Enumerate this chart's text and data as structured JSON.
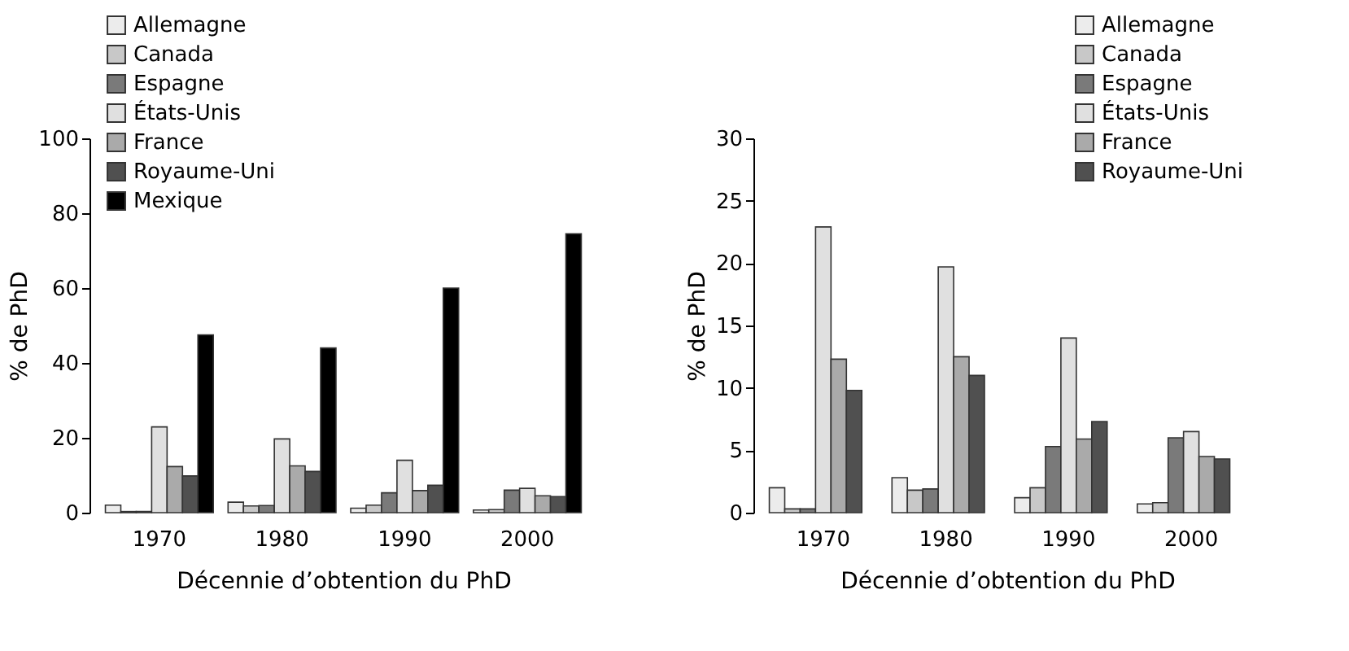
{
  "chart_data": [
    {
      "type": "bar",
      "xlabel": "Décennie d’obtention du PhD",
      "ylabel": "% de PhD",
      "categories": [
        "1970",
        "1980",
        "1990",
        "2000"
      ],
      "ylim": [
        0,
        100
      ],
      "yticks": [
        0,
        20,
        40,
        60,
        80,
        100
      ],
      "grid": false,
      "legend": "top left",
      "series": [
        {
          "name": "Allemagne",
          "color": "#ececec",
          "values": [
            2.0,
            2.8,
            1.2,
            0.7
          ]
        },
        {
          "name": "Canada",
          "color": "#c8c8c8",
          "values": [
            0.3,
            1.8,
            2.0,
            0.8
          ]
        },
        {
          "name": "Espagne",
          "color": "#7a7a7a",
          "values": [
            0.3,
            1.9,
            5.3,
            6.0
          ]
        },
        {
          "name": "États-Unis",
          "color": "#e0e0e0",
          "values": [
            22.9,
            19.7,
            14.0,
            6.5
          ]
        },
        {
          "name": "France",
          "color": "#aaaaaa",
          "values": [
            12.3,
            12.5,
            5.9,
            4.5
          ]
        },
        {
          "name": "Royaume-Uni",
          "color": "#505050",
          "values": [
            9.8,
            11.0,
            7.3,
            4.3
          ]
        },
        {
          "name": "Mexique",
          "color": "#000000",
          "values": [
            47.5,
            44,
            60,
            74.5
          ]
        }
      ]
    },
    {
      "type": "bar",
      "xlabel": "Décennie d’obtention du PhD",
      "ylabel": "% de PhD",
      "categories": [
        "1970",
        "1980",
        "1990",
        "2000"
      ],
      "ylim": [
        0,
        30
      ],
      "yticks": [
        0,
        5,
        10,
        15,
        20,
        25,
        30
      ],
      "grid": false,
      "legend": "top right",
      "series": [
        {
          "name": "Allemagne",
          "color": "#ececec",
          "values": [
            2.0,
            2.8,
            1.2,
            0.7
          ]
        },
        {
          "name": "Canada",
          "color": "#c8c8c8",
          "values": [
            0.3,
            1.8,
            2.0,
            0.8
          ]
        },
        {
          "name": "Espagne",
          "color": "#7a7a7a",
          "values": [
            0.3,
            1.9,
            5.3,
            6.0
          ]
        },
        {
          "name": "États-Unis",
          "color": "#e0e0e0",
          "values": [
            22.9,
            19.7,
            14.0,
            6.5
          ]
        },
        {
          "name": "France",
          "color": "#aaaaaa",
          "values": [
            12.3,
            12.5,
            5.9,
            4.5
          ]
        },
        {
          "name": "Royaume-Uni",
          "color": "#505050",
          "values": [
            9.8,
            11.0,
            7.3,
            4.3
          ]
        }
      ]
    }
  ]
}
